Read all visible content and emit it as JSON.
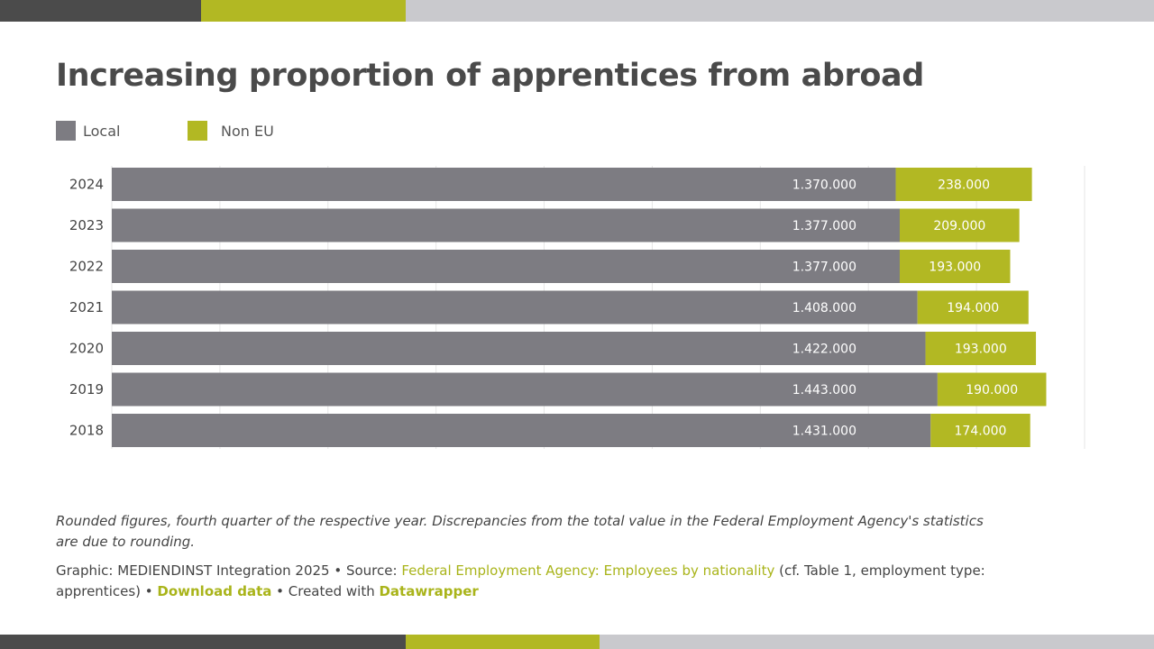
{
  "colors": {
    "local": "#7d7c82",
    "non_eu": "#b2b823",
    "accent": "#a9b41a",
    "grid": "#e6e6e6",
    "strip_dark": "#4b4b4b",
    "strip_green": "#b2b823",
    "strip_light": "#c9c9cd"
  },
  "legend": [
    {
      "label": "Local",
      "color": "#7d7c82"
    },
    {
      "label": "Non EU",
      "color": "#b2b823"
    }
  ],
  "chart_data": {
    "type": "bar",
    "orientation": "horizontal",
    "stacked": true,
    "title": "Increasing proportion of apprentices from abroad",
    "categories": [
      "2024",
      "2023",
      "2022",
      "2021",
      "2020",
      "2019",
      "2018"
    ],
    "series": [
      {
        "name": "Local",
        "values": [
          1370000,
          1377000,
          1377000,
          1408000,
          1422000,
          1443000,
          1431000
        ],
        "labels": [
          "1.370.000",
          "1.377.000",
          "1.377.000",
          "1.408.000",
          "1.422.000",
          "1.443.000",
          "1.431.000"
        ]
      },
      {
        "name": "Non EU",
        "values": [
          238000,
          209000,
          193000,
          194000,
          193000,
          190000,
          174000
        ],
        "labels": [
          "238.000",
          "209.000",
          "193.000",
          "194.000",
          "193.000",
          "190.000",
          "174.000"
        ]
      }
    ],
    "xlim": [
      0,
      1700000
    ],
    "grid": true,
    "legend_position": "top-left"
  },
  "footer": {
    "note": "Rounded figures, fourth quarter of the respective year. Discrepancies from the total value in the Federal Employment Agency's statistics are due to rounding.",
    "graphic_prefix": "Graphic: MEDIENDINST Integration 2025 • Source: ",
    "source_link": "Federal Employment Agency: Employees by nationality",
    "source_suffix": " (cf. Table 1, employment type: apprentices) • ",
    "download_link": "Download data",
    "created_prefix": " • Created with ",
    "datawrapper_link": "Datawrapper"
  }
}
